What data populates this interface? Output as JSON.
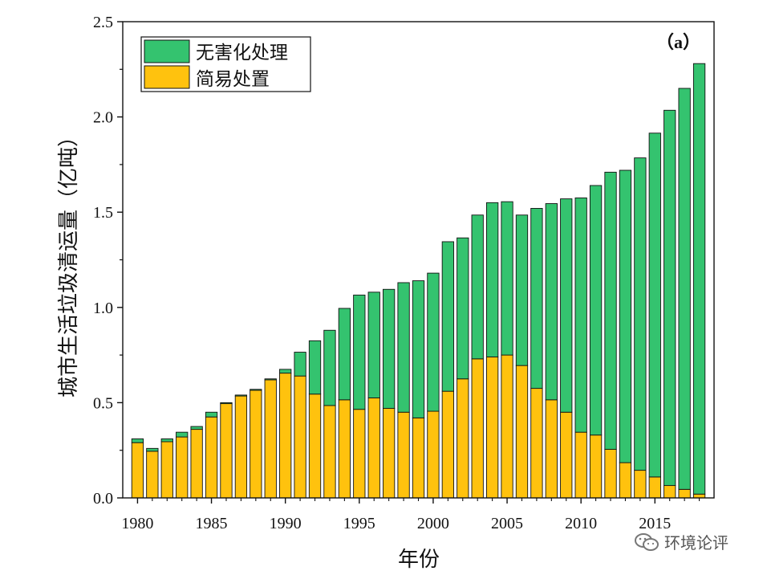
{
  "chart_data": {
    "type": "bar",
    "stacked": true,
    "panel_label": "（a）",
    "xlabel": "年份",
    "ylabel": "城市生活垃圾清运量（亿吨）",
    "ylim": [
      0,
      2.5
    ],
    "yticks": [
      "0.0",
      "0.5",
      "1.0",
      "1.5",
      "2.0",
      "2.5"
    ],
    "xticks": [
      "1980",
      "1985",
      "1990",
      "1995",
      "2000",
      "2005",
      "2010",
      "2015"
    ],
    "legend_position": "top-left",
    "categories": [
      1980,
      1981,
      1982,
      1983,
      1984,
      1985,
      1986,
      1987,
      1988,
      1989,
      1990,
      1991,
      1992,
      1993,
      1994,
      1995,
      1996,
      1997,
      1998,
      1999,
      2000,
      2001,
      2002,
      2003,
      2004,
      2005,
      2006,
      2007,
      2008,
      2009,
      2010,
      2011,
      2012,
      2013,
      2014,
      2015,
      2016,
      2017,
      2018
    ],
    "series": [
      {
        "name": "简易处置",
        "color": "#FFC20E",
        "values": [
          0.29,
          0.245,
          0.295,
          0.32,
          0.36,
          0.425,
          0.495,
          0.535,
          0.565,
          0.62,
          0.655,
          0.64,
          0.545,
          0.485,
          0.515,
          0.465,
          0.525,
          0.47,
          0.45,
          0.42,
          0.455,
          0.56,
          0.625,
          0.73,
          0.74,
          0.75,
          0.695,
          0.575,
          0.515,
          0.45,
          0.345,
          0.33,
          0.255,
          0.185,
          0.145,
          0.11,
          0.065,
          0.045,
          0.02
        ]
      },
      {
        "name": "无害化处理",
        "color": "#34C36F",
        "values": [
          0.02,
          0.015,
          0.015,
          0.025,
          0.015,
          0.025,
          0.005,
          0.005,
          0.005,
          0.005,
          0.02,
          0.125,
          0.28,
          0.395,
          0.48,
          0.6,
          0.555,
          0.625,
          0.68,
          0.72,
          0.725,
          0.785,
          0.74,
          0.755,
          0.81,
          0.805,
          0.79,
          0.945,
          1.03,
          1.12,
          1.23,
          1.31,
          1.455,
          1.535,
          1.64,
          1.805,
          1.97,
          2.105,
          2.26
        ]
      }
    ],
    "legend": [
      "无害化处理",
      "简易处置"
    ]
  },
  "watermark": {
    "text": "环境论评",
    "icon": "wechat-icon"
  }
}
